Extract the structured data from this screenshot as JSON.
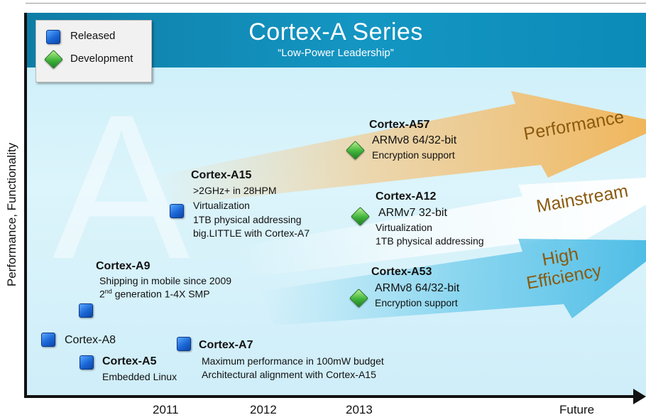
{
  "banner": {
    "title": "Cortex-A Series",
    "subtitle": "“Low-Power Leadership”",
    "color": "#1390bd"
  },
  "legend": {
    "released": "Released",
    "development": "Development"
  },
  "axes": {
    "y_label": "Performance, Functionality",
    "x_ticks": [
      "2011",
      "2012",
      "2013",
      "Future"
    ]
  },
  "arrows": {
    "performance": "Performance",
    "mainstream": "Mainstream",
    "high": "High",
    "efficiency": "Efficiency"
  },
  "cores": {
    "a8": {
      "name": "Cortex-A8",
      "status": "released"
    },
    "a5": {
      "name": "Cortex-A5",
      "status": "released",
      "line1": "Embedded  Linux"
    },
    "a9": {
      "name": "Cortex-A9",
      "status": "released",
      "line1": "Shipping in mobile since 2009",
      "line2_num": "2",
      "line2_sup": "nd",
      "line2_rest": " generation 1-4X SMP"
    },
    "a7": {
      "name": "Cortex-A7",
      "status": "released",
      "line1": "Maximum performance in 100mW budget",
      "line2": "Architectural alignment with Cortex-A15"
    },
    "a15": {
      "name": "Cortex-A15",
      "status": "released",
      "line1": ">2GHz+ in 28HPM",
      "line2": "Virtualization",
      "line3": "1TB physical addressing",
      "line4": "big.LITTLE with Cortex-A7"
    },
    "a57": {
      "name": "Cortex-A57",
      "status": "development",
      "line1": "ARMv8 64/32-bit",
      "line2": "Encryption support"
    },
    "a12": {
      "name": "Cortex-A12",
      "status": "development",
      "line1": "ARMv7 32-bit",
      "line2": "Virtualization",
      "line3": "1TB physical addressing"
    },
    "a53": {
      "name": "Cortex-A53",
      "status": "development",
      "line1": "ARMv8 64/32-bit",
      "line2": "Encryption support"
    }
  }
}
